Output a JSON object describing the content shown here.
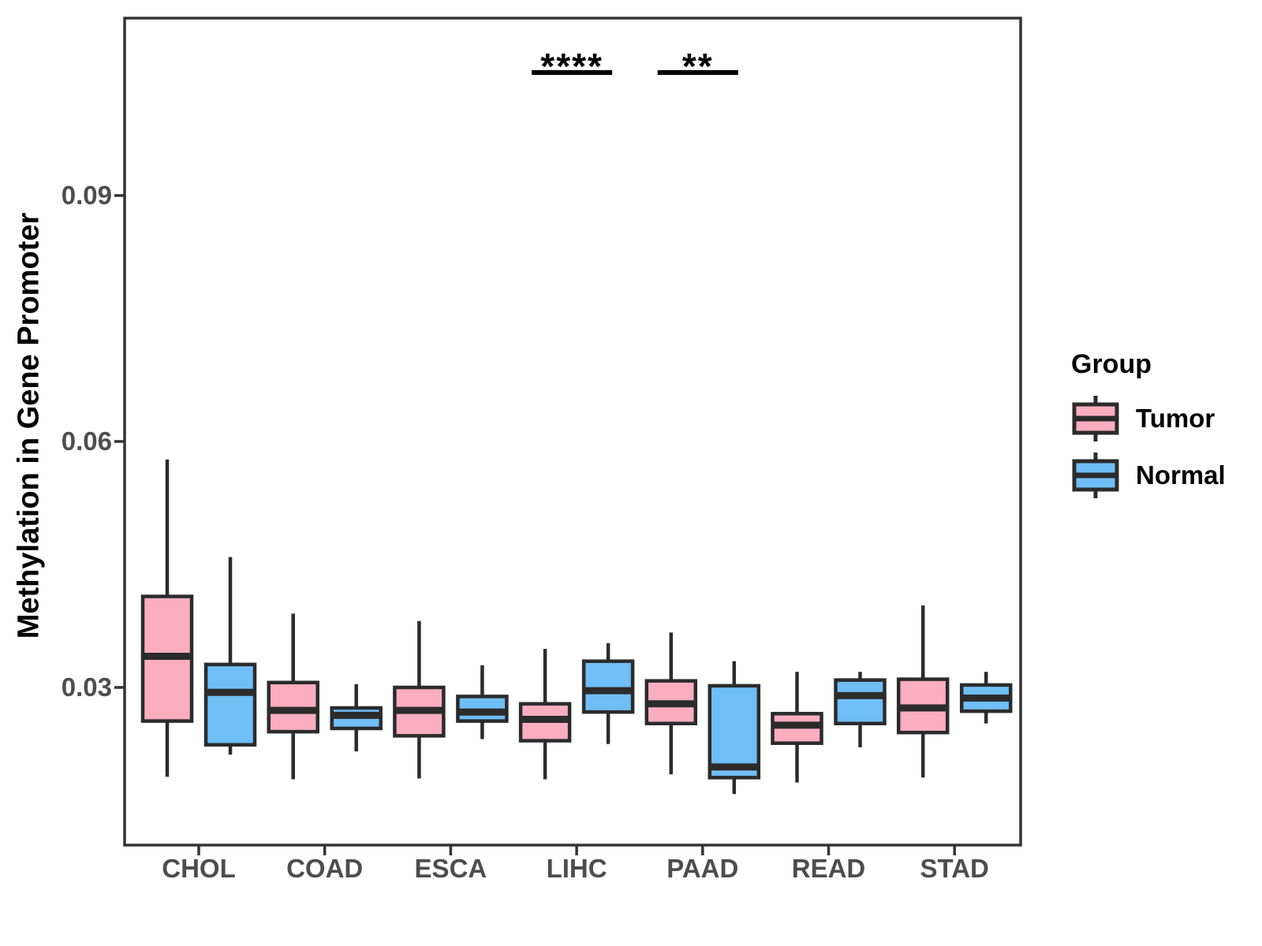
{
  "chart_data": {
    "type": "boxplot",
    "title": "",
    "xlabel": "",
    "ylabel": "Methylation in Gene Promoter",
    "categories": [
      "CHOL",
      "COAD",
      "ESCA",
      "LIHC",
      "PAAD",
      "READ",
      "STAD"
    ],
    "yticks": [
      {
        "value": 0.03,
        "label": "0.03"
      },
      {
        "value": 0.06,
        "label": "0.06"
      },
      {
        "value": 0.09,
        "label": "0.09"
      }
    ],
    "ylim": [
      0.011,
      0.111
    ],
    "grid": false,
    "legend": {
      "title": "Group",
      "position": "right"
    },
    "series": [
      {
        "name": "Tumor",
        "color": "#FAAEC0",
        "boxes": [
          {
            "category": "CHOL",
            "whisker_low": 0.0191,
            "q1": 0.0259,
            "median": 0.0338,
            "q3": 0.0411,
            "whisker_high": 0.0578
          },
          {
            "category": "COAD",
            "whisker_low": 0.0188,
            "q1": 0.0246,
            "median": 0.0272,
            "q3": 0.0306,
            "whisker_high": 0.039
          },
          {
            "category": "ESCA",
            "whisker_low": 0.0189,
            "q1": 0.0241,
            "median": 0.0272,
            "q3": 0.03,
            "whisker_high": 0.0381
          },
          {
            "category": "LIHC",
            "whisker_low": 0.0188,
            "q1": 0.0235,
            "median": 0.0261,
            "q3": 0.028,
            "whisker_high": 0.0347
          },
          {
            "category": "PAAD",
            "whisker_low": 0.0194,
            "q1": 0.0256,
            "median": 0.028,
            "q3": 0.0308,
            "whisker_high": 0.0367
          },
          {
            "category": "READ",
            "whisker_low": 0.0184,
            "q1": 0.0232,
            "median": 0.0254,
            "q3": 0.0268,
            "whisker_high": 0.0319
          },
          {
            "category": "STAD",
            "whisker_low": 0.019,
            "q1": 0.0245,
            "median": 0.0275,
            "q3": 0.031,
            "whisker_high": 0.04
          }
        ]
      },
      {
        "name": "Normal",
        "color": "#6FBEF5",
        "boxes": [
          {
            "category": "CHOL",
            "whisker_low": 0.0218,
            "q1": 0.023,
            "median": 0.0294,
            "q3": 0.0328,
            "whisker_high": 0.0459
          },
          {
            "category": "COAD",
            "whisker_low": 0.0222,
            "q1": 0.025,
            "median": 0.0266,
            "q3": 0.0275,
            "whisker_high": 0.0304
          },
          {
            "category": "ESCA",
            "whisker_low": 0.0237,
            "q1": 0.0259,
            "median": 0.027,
            "q3": 0.0289,
            "whisker_high": 0.0327
          },
          {
            "category": "LIHC",
            "whisker_low": 0.0231,
            "q1": 0.027,
            "median": 0.0296,
            "q3": 0.0332,
            "whisker_high": 0.0354
          },
          {
            "category": "PAAD",
            "whisker_low": 0.017,
            "q1": 0.019,
            "median": 0.0203,
            "q3": 0.0302,
            "whisker_high": 0.0332
          },
          {
            "category": "READ",
            "whisker_low": 0.0227,
            "q1": 0.0256,
            "median": 0.029,
            "q3": 0.0309,
            "whisker_high": 0.0319
          },
          {
            "category": "STAD",
            "whisker_low": 0.0256,
            "q1": 0.0271,
            "median": 0.0287,
            "q3": 0.0303,
            "whisker_high": 0.0319
          }
        ]
      }
    ],
    "annotations": [
      {
        "category": "LIHC",
        "label": "****"
      },
      {
        "category": "PAAD",
        "label": "**"
      }
    ],
    "colors": {
      "box_border": "#2B2B2B",
      "axis_text": "#4D4D4D",
      "panel_border": "#333333",
      "annotation": "#000000"
    }
  }
}
